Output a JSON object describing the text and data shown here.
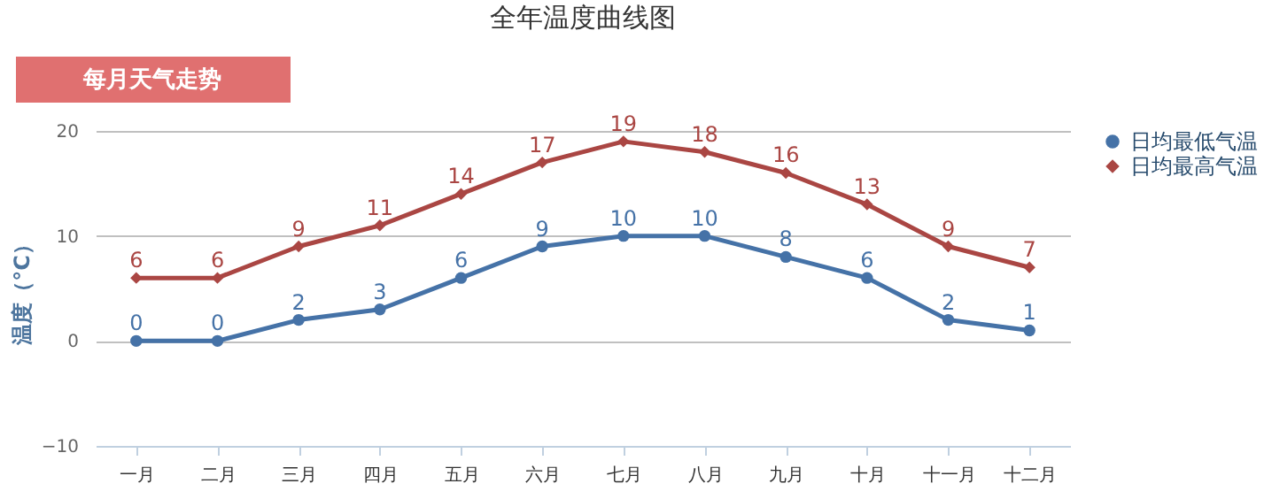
{
  "chart_data": {
    "type": "line",
    "title": "全年温度曲线图",
    "ylabel": "温度（°C）",
    "annotations": [
      "每月天气走势"
    ],
    "categories": [
      "一月",
      "二月",
      "三月",
      "四月",
      "五月",
      "六月",
      "七月",
      "八月",
      "九月",
      "十月",
      "十一月",
      "十二月"
    ],
    "series": [
      {
        "name": "日均最低气温",
        "color": "#4572a7",
        "marker": "circle",
        "values": [
          0,
          0,
          2,
          3,
          6,
          9,
          10,
          10,
          8,
          6,
          2,
          1
        ]
      },
      {
        "name": "日均最高气温",
        "color": "#aa4643",
        "marker": "diamond",
        "values": [
          6,
          6,
          9,
          11,
          14,
          17,
          19,
          18,
          16,
          13,
          9,
          7
        ]
      }
    ],
    "ylim": [
      -10,
      20
    ],
    "yticks": [
      -10,
      0,
      10,
      20
    ],
    "grid": "y",
    "legend": "right",
    "data_labels": true,
    "line_style": "solid"
  }
}
